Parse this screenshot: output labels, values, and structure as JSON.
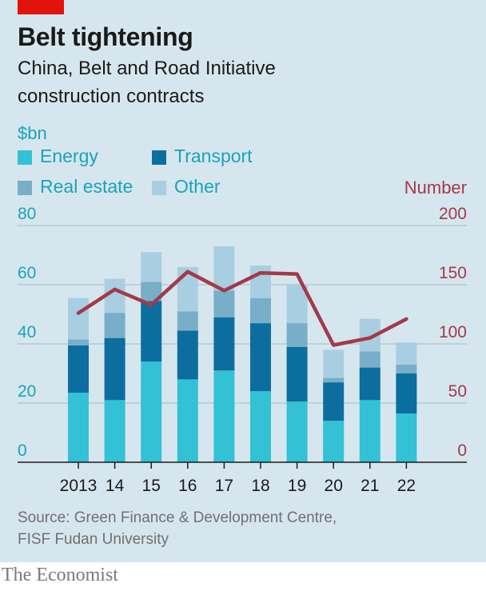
{
  "header": {
    "title": "Belt tightening",
    "subtitle_line1": "China, Belt and Road Initiative",
    "subtitle_line2": "construction contracts"
  },
  "legend": [
    {
      "name": "Energy",
      "color": "#33c1d6"
    },
    {
      "name": "Transport",
      "color": "#0b6e9f"
    },
    {
      "name": "Real estate",
      "color": "#79aec8"
    },
    {
      "name": "Other",
      "color": "#a8cfe1"
    }
  ],
  "footer": {
    "source": "Source: Green Finance & Development Centre, FISF Fudan University",
    "brand": "The Economist"
  },
  "colors": {
    "energy": "#33c1d6",
    "transport": "#0b6e9f",
    "real_estate": "#79aec8",
    "other": "#a8cfe1",
    "number_line": "#a33a49",
    "panel": "#d6e6ee",
    "accent_red": "#e3120b"
  },
  "chart_data": {
    "type": "bar",
    "stacked": true,
    "categories": [
      "2013",
      "14",
      "15",
      "16",
      "17",
      "18",
      "19",
      "20",
      "21",
      "22"
    ],
    "ylabel": "$bn",
    "y2label": "Number",
    "ylim": [
      0,
      80
    ],
    "y2lim": [
      0,
      200
    ],
    "yticks": [
      0,
      20,
      40,
      60,
      80
    ],
    "y2ticks": [
      0,
      50,
      100,
      150,
      200
    ],
    "grid": true,
    "series": [
      {
        "name": "Energy",
        "axis": "left",
        "values": [
          23.5,
          21,
          34,
          28,
          31,
          24,
          20.5,
          14,
          21,
          16.5
        ]
      },
      {
        "name": "Transport",
        "axis": "left",
        "values": [
          16,
          21,
          20.5,
          16.5,
          18,
          23,
          18.5,
          13,
          11,
          13.5
        ]
      },
      {
        "name": "Real estate",
        "axis": "left",
        "values": [
          2,
          8.5,
          6.5,
          6.5,
          9,
          8.5,
          8,
          1.5,
          5.5,
          3
        ]
      },
      {
        "name": "Other",
        "axis": "left",
        "values": [
          14,
          11.5,
          10,
          15,
          15,
          11,
          13,
          9.5,
          11,
          7.5
        ]
      },
      {
        "name": "Number",
        "axis": "right",
        "type": "line",
        "values": [
          126,
          146,
          133,
          161,
          145,
          160,
          159,
          99,
          105,
          121
        ]
      }
    ]
  }
}
